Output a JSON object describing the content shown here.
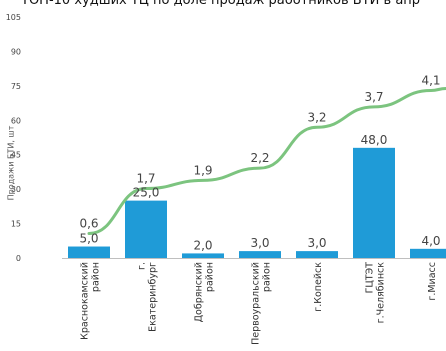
{
  "chart_data": {
    "type": "bar",
    "title": "ТОП-10 худших ТЦ по доле продаж работников БТИ в апр",
    "ylabel": "Продажи БТИ, шт",
    "xlabel": "",
    "ylim": [
      0,
      105
    ],
    "yticks": [
      0,
      15,
      30,
      45,
      60,
      75,
      90,
      105
    ],
    "grid": false,
    "categories": [
      "Краснокамский район",
      "г. Екатеринбург",
      "Добрянский район",
      "Первоуральский район",
      "г.Копейск",
      "ГЦТЭТ г.Челябинск",
      "г.Миасс"
    ],
    "series": [
      {
        "type": "bar",
        "color": "#1f9bd7",
        "values": [
          5.0,
          25.0,
          2.0,
          3.0,
          3.0,
          48.0,
          4.0
        ],
        "labels": [
          "5,0",
          "25,0",
          "2,0",
          "3,0",
          "3,0",
          "48,0",
          "4,0"
        ]
      },
      {
        "type": "line",
        "color": "#7cc47f",
        "values": [
          0.6,
          1.7,
          1.9,
          2.2,
          3.2,
          3.7,
          4.1
        ],
        "labels": [
          "0,6",
          "1,7",
          "1,9",
          "2,2",
          "3,2",
          "3,7",
          "4,1"
        ],
        "line_ylim": [
          0,
          5.9
        ]
      }
    ]
  }
}
